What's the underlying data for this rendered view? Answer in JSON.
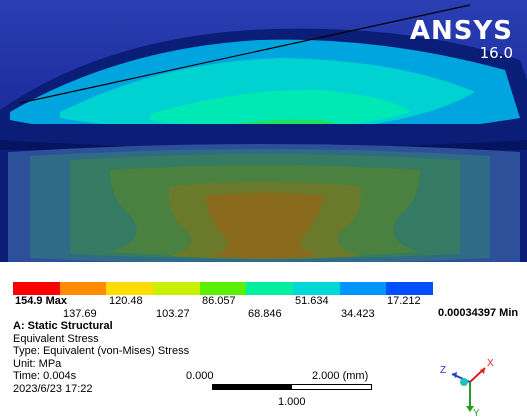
{
  "brand": {
    "name": "ANSYS",
    "version": "16.0"
  },
  "legend": {
    "colors": [
      "#ff0000",
      "#ff8c00",
      "#ffdd00",
      "#c8f000",
      "#5af000",
      "#00f0a0",
      "#00d8d8",
      "#0096ff",
      "#0050ff"
    ],
    "max_label": "154.9 Max",
    "labels_top": [
      "120.48",
      "86.057",
      "51.634",
      "17.212"
    ],
    "labels_bottom": [
      "137.69",
      "103.27",
      "68.846",
      "34.423"
    ],
    "min_label": "0.00034397 Min"
  },
  "info": {
    "title": "A: Static Structural",
    "result": "Equivalent Stress",
    "type": "Type: Equivalent (von-Mises) Stress",
    "unit": "Unit: MPa",
    "time": "Time: 0.004s",
    "date": "2023/6/23 17:22"
  },
  "scale": {
    "start": "0.000",
    "end": "2.000 (mm)",
    "mid": "1.000"
  },
  "triad": {
    "x": "X",
    "y": "Y",
    "z": "Z"
  }
}
